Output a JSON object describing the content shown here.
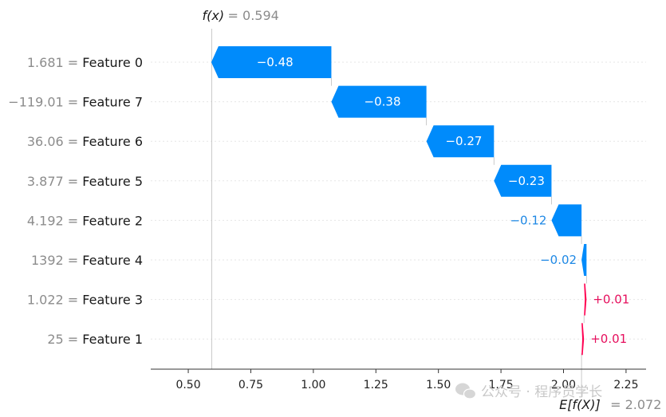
{
  "chart_data": {
    "type": "waterfall",
    "fx_label": "f(x)",
    "fx_value_text": "= 0.594",
    "efx_label": "E[f(X)]",
    "efx_value_text": "= 2.072",
    "base_value": 2.072,
    "final_value": 0.594,
    "xlim": [
      0.35,
      2.33
    ],
    "x_ticks": [
      0.5,
      0.75,
      1.0,
      1.25,
      1.5,
      1.75,
      2.0,
      2.25
    ],
    "x_tick_labels": [
      "0.50",
      "0.75",
      "1.00",
      "1.25",
      "1.50",
      "1.75",
      "2.00",
      "2.25"
    ],
    "colors": {
      "negative": "#008bfb",
      "positive": "#ff0051"
    },
    "features": [
      {
        "feature_value": "1.681",
        "name": "Feature 0",
        "contribution": -0.48,
        "label": "−0.48"
      },
      {
        "feature_value": "−119.01",
        "name": "Feature 7",
        "contribution": -0.38,
        "label": "−0.38"
      },
      {
        "feature_value": "36.06",
        "name": "Feature 6",
        "contribution": -0.27,
        "label": "−0.27"
      },
      {
        "feature_value": "3.877",
        "name": "Feature 5",
        "contribution": -0.23,
        "label": "−0.23"
      },
      {
        "feature_value": "4.192",
        "name": "Feature 2",
        "contribution": -0.12,
        "label": "−0.12"
      },
      {
        "feature_value": "1392",
        "name": "Feature 4",
        "contribution": -0.02,
        "label": "−0.02"
      },
      {
        "feature_value": "1.022",
        "name": "Feature 3",
        "contribution": 0.01,
        "label": "+0.01"
      },
      {
        "feature_value": "25",
        "name": "Feature 1",
        "contribution": 0.01,
        "label": "+0.01"
      }
    ]
  },
  "watermark": {
    "text": "公众号 · 程序员学长",
    "icon": "wechat-icon"
  }
}
